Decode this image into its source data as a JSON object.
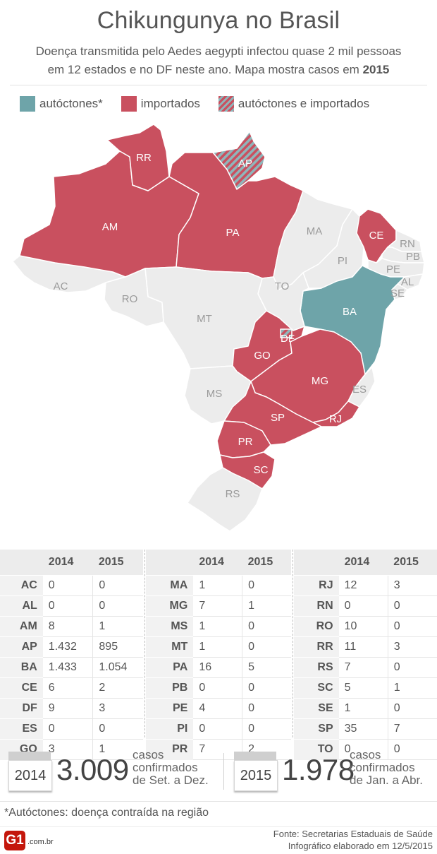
{
  "title": "Chikungunya no Brasil",
  "subtitle_line1": "Doença transmitida pelo Aedes aegypti infectou quase 2 mil pessoas",
  "subtitle_line2_pre": "em 12 estados e no DF neste ano. Mapa mostra casos em",
  "subtitle_line2_year": "2015",
  "legend": {
    "autoctones": "autóctones*",
    "importados": "importados",
    "ambos": "autóctones e importados"
  },
  "colors": {
    "autoctones": "#6ea4a9",
    "importados": "#c9505f",
    "none": "#ececec",
    "border": "#ffffff"
  },
  "map_states": [
    {
      "code": "AC",
      "status": "none"
    },
    {
      "code": "AM",
      "status": "importados"
    },
    {
      "code": "RR",
      "status": "importados"
    },
    {
      "code": "AP",
      "status": "ambos"
    },
    {
      "code": "PA",
      "status": "importados"
    },
    {
      "code": "MA",
      "status": "none"
    },
    {
      "code": "PI",
      "status": "none"
    },
    {
      "code": "CE",
      "status": "importados"
    },
    {
      "code": "RN",
      "status": "none"
    },
    {
      "code": "PB",
      "status": "none"
    },
    {
      "code": "PE",
      "status": "none"
    },
    {
      "code": "AL",
      "status": "none"
    },
    {
      "code": "SE",
      "status": "none"
    },
    {
      "code": "BA",
      "status": "autoctones"
    },
    {
      "code": "TO",
      "status": "none"
    },
    {
      "code": "RO",
      "status": "none"
    },
    {
      "code": "MT",
      "status": "none"
    },
    {
      "code": "GO",
      "status": "importados"
    },
    {
      "code": "DF",
      "status": "ambos"
    },
    {
      "code": "MG",
      "status": "importados"
    },
    {
      "code": "ES",
      "status": "none"
    },
    {
      "code": "RJ",
      "status": "importados"
    },
    {
      "code": "SP",
      "status": "importados"
    },
    {
      "code": "MS",
      "status": "none"
    },
    {
      "code": "PR",
      "status": "importados"
    },
    {
      "code": "SC",
      "status": "importados"
    },
    {
      "code": "RS",
      "status": "none"
    }
  ],
  "chart_data": {
    "type": "table",
    "columns": [
      "",
      "2014",
      "2015"
    ],
    "rows": [
      [
        "AC",
        "0",
        "0"
      ],
      [
        "AL",
        "0",
        "0"
      ],
      [
        "AM",
        "8",
        "1"
      ],
      [
        "AP",
        "1.432",
        "895"
      ],
      [
        "BA",
        "1.433",
        "1.054"
      ],
      [
        "CE",
        "6",
        "2"
      ],
      [
        "DF",
        "9",
        "3"
      ],
      [
        "ES",
        "0",
        "0"
      ],
      [
        "GO",
        "3",
        "1"
      ],
      [
        "MA",
        "1",
        "0"
      ],
      [
        "MG",
        "7",
        "1"
      ],
      [
        "MS",
        "1",
        "0"
      ],
      [
        "MT",
        "1",
        "0"
      ],
      [
        "PA",
        "16",
        "5"
      ],
      [
        "PB",
        "0",
        "0"
      ],
      [
        "PE",
        "4",
        "0"
      ],
      [
        "PI",
        "0",
        "0"
      ],
      [
        "PR",
        "7",
        "2"
      ],
      [
        "RJ",
        "12",
        "3"
      ],
      [
        "RN",
        "0",
        "0"
      ],
      [
        "RO",
        "10",
        "0"
      ],
      [
        "RR",
        "11",
        "3"
      ],
      [
        "RS",
        "7",
        "0"
      ],
      [
        "SC",
        "5",
        "1"
      ],
      [
        "SE",
        "1",
        "0"
      ],
      [
        "SP",
        "35",
        "7"
      ],
      [
        "TO",
        "0",
        "0"
      ]
    ]
  },
  "totals": [
    {
      "year": "2014",
      "value": "3.009",
      "caption1": "casos",
      "caption2": "confirmados",
      "caption3": "de Set. a Dez."
    },
    {
      "year": "2015",
      "value": "1.978",
      "caption1": "casos",
      "caption2": "confirmados",
      "caption3": "de Jan. a Abr."
    }
  ],
  "footnote": "*Autóctones: doença contraída na região",
  "logo": {
    "mark": "G1",
    "domain": ".com.br"
  },
  "source_line1": "Fonte: Secretarias Estaduais de Saúde",
  "source_line2": "Infográfico elaborado em 12/5/2015"
}
